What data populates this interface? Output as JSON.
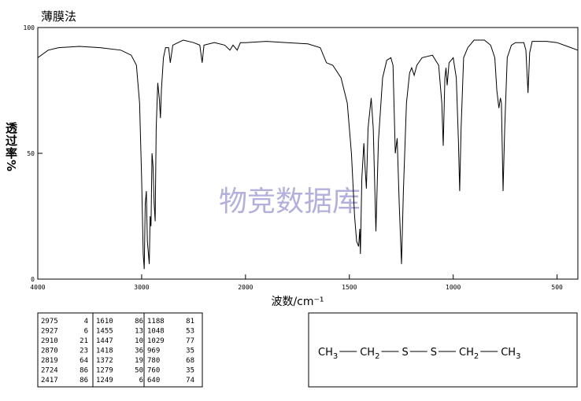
{
  "chart_data": {
    "type": "line",
    "title": "薄膜法",
    "xlabel": "波数/cm⁻¹",
    "ylabel": "透过率%",
    "watermark": "物竞数据库",
    "xlim": [
      4000,
      400
    ],
    "x_scale_change": {
      "at": 2000,
      "factor": 2
    },
    "xticks": [
      4000,
      3000,
      2000,
      1500,
      1000,
      500
    ],
    "ylim": [
      0,
      100
    ],
    "yticks": [
      0,
      50,
      100
    ],
    "color": "#000000",
    "x": [
      4000,
      3900,
      3800,
      3600,
      3400,
      3200,
      3100,
      3050,
      3020,
      3000,
      2985,
      2975,
      2965,
      2955,
      2945,
      2927,
      2918,
      2910,
      2900,
      2890,
      2880,
      2870,
      2860,
      2845,
      2830,
      2819,
      2810,
      2790,
      2770,
      2740,
      2724,
      2700,
      2600,
      2500,
      2440,
      2417,
      2400,
      2300,
      2200,
      2150,
      2120,
      2080,
      2050,
      2000,
      1900,
      1800,
      1700,
      1640,
      1610,
      1580,
      1540,
      1510,
      1490,
      1475,
      1465,
      1455,
      1450,
      1447,
      1440,
      1430,
      1425,
      1418,
      1410,
      1395,
      1385,
      1372,
      1360,
      1340,
      1320,
      1300,
      1290,
      1279,
      1270,
      1260,
      1249,
      1240,
      1225,
      1210,
      1200,
      1188,
      1175,
      1150,
      1100,
      1070,
      1055,
      1048,
      1040,
      1035,
      1029,
      1020,
      1000,
      985,
      975,
      969,
      962,
      950,
      930,
      900,
      850,
      820,
      800,
      790,
      780,
      773,
      768,
      760,
      752,
      740,
      720,
      700,
      660,
      650,
      640,
      632,
      620,
      550,
      500,
      450,
      400
    ],
    "values": [
      88,
      91,
      92,
      92.5,
      92,
      91,
      89,
      85,
      70,
      40,
      10,
      4,
      30,
      35,
      15,
      6,
      25,
      21,
      50,
      45,
      30,
      23,
      60,
      78,
      72,
      64,
      75,
      88,
      92,
      92,
      86,
      93,
      95,
      94,
      93,
      86,
      93,
      94,
      93,
      91,
      93,
      91,
      94,
      94,
      94.5,
      94,
      93.5,
      92,
      86,
      85,
      80,
      70,
      50,
      25,
      15,
      13,
      20,
      10,
      40,
      54,
      45,
      36,
      60,
      72,
      60,
      19,
      55,
      80,
      87,
      88,
      85,
      50,
      56,
      30,
      6,
      35,
      70,
      82,
      84,
      81,
      85,
      88,
      89,
      85,
      70,
      53,
      80,
      84,
      77,
      86,
      88,
      80,
      55,
      35,
      60,
      88,
      92,
      95,
      95,
      93,
      88,
      75,
      68,
      72,
      70,
      35,
      60,
      88,
      93,
      94,
      94,
      91,
      74,
      90,
      94.5,
      94.5,
      94,
      92.5,
      91
    ]
  },
  "peak_table": [
    [
      [
        "2975",
        "4"
      ],
      [
        "2927",
        "6"
      ],
      [
        "2910",
        "21"
      ],
      [
        "2870",
        "23"
      ],
      [
        "2819",
        "64"
      ],
      [
        "2724",
        "86"
      ],
      [
        "2417",
        "86"
      ]
    ],
    [
      [
        "1610",
        "86"
      ],
      [
        "1455",
        "13"
      ],
      [
        "1447",
        "10"
      ],
      [
        "1418",
        "36"
      ],
      [
        "1372",
        "19"
      ],
      [
        "1279",
        "50"
      ],
      [
        "1249",
        "6"
      ]
    ],
    [
      [
        "1188",
        "81"
      ],
      [
        "1048",
        "53"
      ],
      [
        "1029",
        "77"
      ],
      [
        "969",
        "35"
      ],
      [
        "780",
        "68"
      ],
      [
        "760",
        "35"
      ],
      [
        "640",
        "74"
      ]
    ]
  ],
  "structure": [
    {
      "text": "CH",
      "sub": "3"
    },
    {
      "text": "CH",
      "sub": "2"
    },
    {
      "text": "S"
    },
    {
      "text": "S"
    },
    {
      "text": "CH",
      "sub": "2"
    },
    {
      "text": "CH",
      "sub": "3"
    }
  ]
}
